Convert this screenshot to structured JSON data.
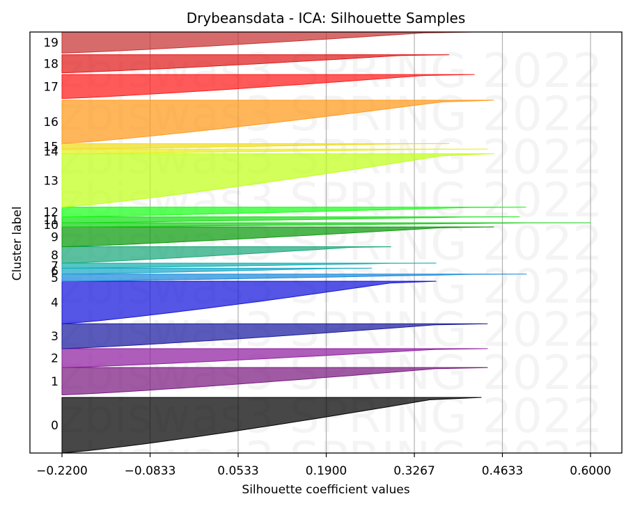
{
  "chart_data": {
    "type": "area",
    "title": "Drybeansdata - ICA: Silhouette Samples",
    "xlabel": "Silhouette coefficient values",
    "ylabel": "Cluster label",
    "xlim": [
      -0.22,
      0.6
    ],
    "x_ticks": [
      -0.22,
      -0.0833,
      0.0533,
      0.19,
      0.3267,
      0.4633,
      0.6
    ],
    "x_tick_labels": [
      "−0.2200",
      "−0.0833",
      "0.0533",
      "0.1900",
      "0.3267",
      "0.4633",
      "0.6000"
    ],
    "grid": "vertical",
    "watermark": "zbiswas3 SPRING 2022",
    "series": [
      {
        "label": "0",
        "color": "#000000",
        "band": [
          0.0,
          0.132
        ],
        "max_silhouette": 0.43
      },
      {
        "label": "1",
        "color": "#7a1a80",
        "band": [
          0.138,
          0.203
        ],
        "max_silhouette": 0.44
      },
      {
        "label": "2",
        "color": "#8f1fa0",
        "band": [
          0.203,
          0.248
        ],
        "max_silhouette": 0.44
      },
      {
        "label": "3",
        "color": "#1a1aa0",
        "band": [
          0.248,
          0.307
        ],
        "max_silhouette": 0.44
      },
      {
        "label": "4",
        "color": "#1414dc",
        "band": [
          0.307,
          0.408
        ],
        "max_silhouette": 0.36
      },
      {
        "label": "5",
        "color": "#1a8adc",
        "band": [
          0.408,
          0.425
        ],
        "max_silhouette": 0.5
      },
      {
        "label": "6",
        "color": "#18a8c8",
        "band": [
          0.425,
          0.439
        ],
        "max_silhouette": 0.26
      },
      {
        "label": "7",
        "color": "#12b0b0",
        "band": [
          0.439,
          0.451
        ],
        "max_silhouette": 0.36
      },
      {
        "label": "8",
        "color": "#1aa87a",
        "band": [
          0.451,
          0.49
        ],
        "max_silhouette": 0.29
      },
      {
        "label": "9",
        "color": "#0a9a0a",
        "band": [
          0.49,
          0.537
        ],
        "max_silhouette": 0.45
      },
      {
        "label": "10",
        "color": "#16d016",
        "band": [
          0.537,
          0.547
        ],
        "max_silhouette": 0.6
      },
      {
        "label": "11",
        "color": "#14e014",
        "band": [
          0.547,
          0.561
        ],
        "max_silhouette": 0.49
      },
      {
        "label": "12",
        "color": "#1aff1a",
        "band": [
          0.561,
          0.584
        ],
        "max_silhouette": 0.5
      },
      {
        "label": "13",
        "color": "#c0ff1a",
        "band": [
          0.584,
          0.711
        ],
        "max_silhouette": 0.45
      },
      {
        "label": "14",
        "color": "#e8f01a",
        "band": [
          0.711,
          0.722
        ],
        "max_silhouette": 0.44
      },
      {
        "label": "15",
        "color": "#f0dc1a",
        "band": [
          0.722,
          0.735
        ],
        "max_silhouette": 0.38
      },
      {
        "label": "16",
        "color": "#ff9a1a",
        "band": [
          0.735,
          0.838
        ],
        "max_silhouette": 0.45
      },
      {
        "label": "17",
        "color": "#ff1a1a",
        "band": [
          0.842,
          0.899
        ],
        "max_silhouette": 0.42
      },
      {
        "label": "18",
        "color": "#e01a1a",
        "band": [
          0.903,
          0.946
        ],
        "max_silhouette": 0.38
      },
      {
        "label": "19",
        "color": "#c83232",
        "band": [
          0.95,
          1.0
        ],
        "max_silhouette": 0.42
      }
    ]
  }
}
